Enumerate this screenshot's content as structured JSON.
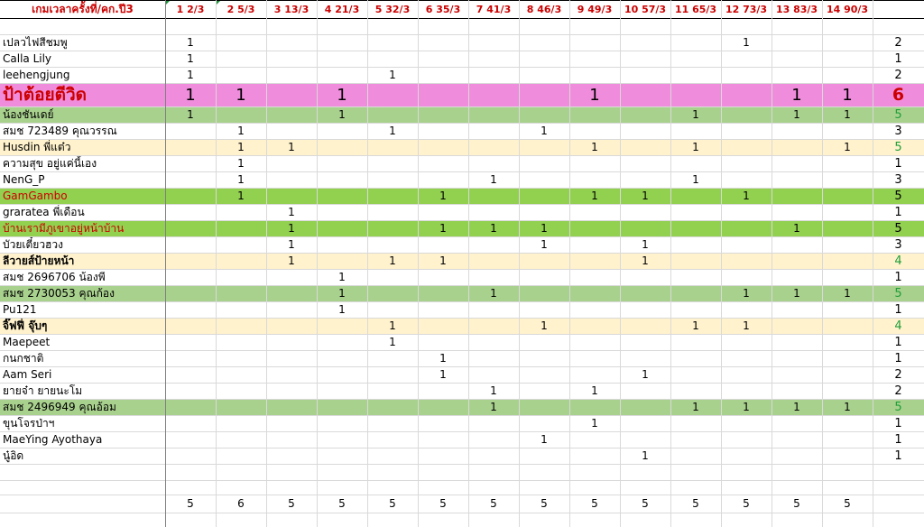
{
  "header": {
    "title": "เกมเวลาครั้งที่/คก.ปี3",
    "columns": [
      "1   2/3",
      "2  5/3",
      "3  13/3",
      "4  21/3",
      "5  32/3",
      "6  35/3",
      "7  41/3",
      "8  46/3",
      "9  49/3",
      "10  57/3",
      "11  65/3",
      "12  73/3",
      "13  83/3",
      "14  90/3"
    ]
  },
  "colors": {
    "pink": "#f08cdc",
    "green": "#a9d18e",
    "brightgreen": "#92d050",
    "cream": "#fff2cc",
    "red": "#cc0000",
    "greentext": "#1f9e3a"
  },
  "rows": [
    {
      "name": "เปลวไฟสีชมพู",
      "cells": [
        "1",
        "",
        "",
        "",
        "",
        "",
        "",
        "",
        "",
        "",
        "",
        "1",
        "",
        ""
      ],
      "total": "2",
      "style": "plain"
    },
    {
      "name": "Calla Lily",
      "cells": [
        "1",
        "",
        "",
        "",
        "",
        "",
        "",
        "",
        "",
        "",
        "",
        "",
        "",
        ""
      ],
      "total": "1",
      "style": "plain"
    },
    {
      "name": "leehengjung",
      "cells": [
        "1",
        "",
        "",
        "",
        "1",
        "",
        "",
        "",
        "",
        "",
        "",
        "",
        "",
        ""
      ],
      "total": "2",
      "style": "plain"
    },
    {
      "name": "ป้าต้อยตีวิด",
      "cells": [
        "1",
        "1",
        "",
        "1",
        "",
        "",
        "",
        "",
        "1",
        "",
        "",
        "",
        "1",
        "1"
      ],
      "total": "6",
      "style": "pink"
    },
    {
      "name": "น้องชันเดย์",
      "cells": [
        "1",
        "",
        "",
        "1",
        "",
        "",
        "",
        "",
        "",
        "",
        "1",
        "",
        "1",
        "1"
      ],
      "total": "5",
      "style": "green"
    },
    {
      "name": "สมช 723489 คุณวรรณ",
      "cells": [
        "",
        "1",
        "",
        "",
        "1",
        "",
        "",
        "1",
        "",
        "",
        "",
        "",
        "",
        ""
      ],
      "total": "3",
      "style": "plain"
    },
    {
      "name": "Husdin พี่แต๋ว",
      "cells": [
        "",
        "1",
        "1",
        "",
        "",
        "",
        "",
        "",
        "1",
        "",
        "1",
        "",
        "",
        "1"
      ],
      "total": "5",
      "style": "cream"
    },
    {
      "name": "ความสุข อยู่แค่นี้เอง",
      "cells": [
        "",
        "1",
        "",
        "",
        "",
        "",
        "",
        "",
        "",
        "",
        "",
        "",
        "",
        ""
      ],
      "total": "1",
      "style": "plain"
    },
    {
      "name": "NenG_P",
      "cells": [
        "",
        "1",
        "",
        "",
        "",
        "",
        "1",
        "",
        "",
        "",
        "1",
        "",
        "",
        ""
      ],
      "total": "3",
      "style": "plain"
    },
    {
      "name": "GamGambo",
      "cells": [
        "",
        "1",
        "",
        "",
        "",
        "1",
        "",
        "",
        "1",
        "1",
        "",
        "1",
        "",
        ""
      ],
      "total": "5",
      "style": "brightgreen"
    },
    {
      "name": "graratea พี่เดือน",
      "cells": [
        "",
        "",
        "1",
        "",
        "",
        "",
        "",
        "",
        "",
        "",
        "",
        "",
        "",
        ""
      ],
      "total": "1",
      "style": "plain"
    },
    {
      "name": "บ้านเรามีภูเขาอยู่หน้าบ้าน",
      "cells": [
        "",
        "",
        "1",
        "",
        "",
        "1",
        "1",
        "1",
        "",
        "",
        "",
        "",
        "1",
        ""
      ],
      "total": "5",
      "style": "brightgreen"
    },
    {
      "name": "บัวยเตี๋ยวฮวง",
      "cells": [
        "",
        "",
        "1",
        "",
        "",
        "",
        "",
        "1",
        "",
        "1",
        "",
        "",
        "",
        ""
      ],
      "total": "3",
      "style": "plain"
    },
    {
      "name": "ลีวายส์ป้ายหน้า",
      "cells": [
        "",
        "",
        "1",
        "",
        "1",
        "1",
        "",
        "",
        "",
        "1",
        "",
        "",
        "",
        ""
      ],
      "total": "4",
      "style": "cream"
    },
    {
      "name": "สมช 2696706 น้องพี",
      "cells": [
        "",
        "",
        "",
        "1",
        "",
        "",
        "",
        "",
        "",
        "",
        "",
        "",
        "",
        ""
      ],
      "total": "1",
      "style": "plain"
    },
    {
      "name": "สมช 2730053  คุณก้อง",
      "cells": [
        "",
        "",
        "",
        "1",
        "",
        "",
        "1",
        "",
        "",
        "",
        "",
        "1",
        "1",
        "1"
      ],
      "total": "5",
      "style": "green"
    },
    {
      "name": "Pu121",
      "cells": [
        "",
        "",
        "",
        "1",
        "",
        "",
        "",
        "",
        "",
        "",
        "",
        "",
        "",
        ""
      ],
      "total": "1",
      "style": "plain"
    },
    {
      "name": "จิ๊ฟฟี่ จุ๊บๆ",
      "cells": [
        "",
        "",
        "",
        "",
        "1",
        "",
        "",
        "1",
        "",
        "",
        "1",
        "1",
        "",
        ""
      ],
      "total": "4",
      "style": "cream"
    },
    {
      "name": "Maepeet",
      "cells": [
        "",
        "",
        "",
        "",
        "1",
        "",
        "",
        "",
        "",
        "",
        "",
        "",
        "",
        ""
      ],
      "total": "1",
      "style": "plain"
    },
    {
      "name": "กนกชาติ",
      "cells": [
        "",
        "",
        "",
        "",
        "",
        "1",
        "",
        "",
        "",
        "",
        "",
        "",
        "",
        ""
      ],
      "total": "1",
      "style": "plain"
    },
    {
      "name": "Aam Seri",
      "cells": [
        "",
        "",
        "",
        "",
        "",
        "1",
        "",
        "",
        "",
        "1",
        "",
        "",
        "",
        ""
      ],
      "total": "2",
      "style": "plain"
    },
    {
      "name": "ยายจ๋า ยายนะโม",
      "cells": [
        "",
        "",
        "",
        "",
        "",
        "",
        "1",
        "",
        "1",
        "",
        "",
        "",
        "",
        ""
      ],
      "total": "2",
      "style": "plain"
    },
    {
      "name": "สมช 2496949 คุณอ้อม",
      "cells": [
        "",
        "",
        "",
        "",
        "",
        "",
        "1",
        "",
        "",
        "",
        "1",
        "1",
        "1",
        "1"
      ],
      "total": "5",
      "style": "green"
    },
    {
      "name": "ขุนโจรป่าฯ",
      "cells": [
        "",
        "",
        "",
        "",
        "",
        "",
        "",
        "",
        "1",
        "",
        "",
        "",
        "",
        ""
      ],
      "total": "1",
      "style": "plain"
    },
    {
      "name": "MaeYing Ayothaya",
      "cells": [
        "",
        "",
        "",
        "",
        "",
        "",
        "",
        "1",
        "",
        "",
        "",
        "",
        "",
        ""
      ],
      "total": "1",
      "style": "plain"
    },
    {
      "name": "นู๋อิด",
      "cells": [
        "",
        "",
        "",
        "",
        "",
        "",
        "",
        "",
        "",
        "1",
        "",
        "",
        "",
        ""
      ],
      "total": "1",
      "style": "plain"
    }
  ],
  "footer": {
    "totals": [
      "5",
      "6",
      "5",
      "5",
      "5",
      "5",
      "5",
      "5",
      "5",
      "5",
      "5",
      "5",
      "5",
      "5"
    ]
  }
}
